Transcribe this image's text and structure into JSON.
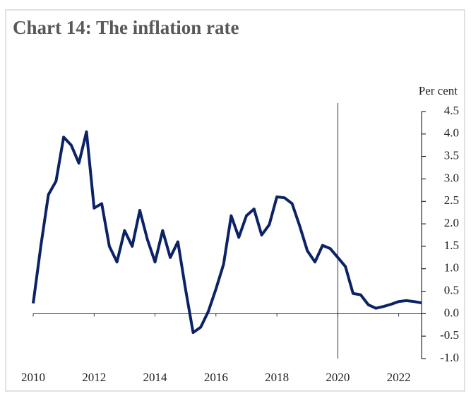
{
  "chart_data": {
    "type": "line",
    "title": "Chart 14:  The inflation rate",
    "y_unit": "Per cent",
    "x": [
      2010,
      2010.25,
      2010.5,
      2010.75,
      2011,
      2011.25,
      2011.5,
      2011.75,
      2012,
      2012.25,
      2012.5,
      2012.75,
      2013,
      2013.25,
      2013.5,
      2013.75,
      2014,
      2014.25,
      2014.5,
      2014.75,
      2015,
      2015.25,
      2015.5,
      2015.75,
      2016,
      2016.25,
      2016.5,
      2016.75,
      2017,
      2017.25,
      2017.5,
      2017.75,
      2018,
      2018.25,
      2018.5,
      2018.75,
      2019,
      2019.25,
      2019.5,
      2019.75,
      2020,
      2020.25,
      2020.5,
      2020.75,
      2021,
      2021.25,
      2021.5,
      2021.75,
      2022,
      2022.25,
      2022.5,
      2022.75
    ],
    "series": [
      {
        "color": "#0b2265",
        "values": [
          0.23,
          1.5,
          2.65,
          2.95,
          3.93,
          3.75,
          3.35,
          4.05,
          2.35,
          2.45,
          1.5,
          1.15,
          1.85,
          1.5,
          2.3,
          1.65,
          1.15,
          1.85,
          1.25,
          1.6,
          0.55,
          -0.42,
          -0.3,
          0.05,
          0.55,
          1.1,
          2.18,
          1.7,
          2.18,
          2.33,
          1.75,
          1.98,
          2.6,
          2.58,
          2.45,
          1.95,
          1.4,
          1.15,
          1.52,
          1.45,
          1.25,
          1.05,
          0.45,
          0.42,
          0.2,
          0.12,
          0.16,
          0.21,
          0.27,
          0.29,
          0.27,
          0.24
        ]
      }
    ],
    "xlim": [
      2010,
      2022.75
    ],
    "xticks": [
      2010,
      2012,
      2014,
      2016,
      2018,
      2020,
      2022
    ],
    "ylim": [
      -1,
      4.5
    ],
    "yticks": [
      {
        "value": -1,
        "label": "-1.0"
      },
      -0.5,
      {
        "value": 0,
        "label": "0.0"
      },
      0.5,
      {
        "value": 1,
        "label": "1.0"
      },
      1.5,
      {
        "value": 2,
        "label": "2.0"
      },
      2.5,
      {
        "value": 3,
        "label": "3.0"
      },
      3.5,
      {
        "value": 4,
        "label": "4.0"
      },
      4.5
    ],
    "vline": 2020
  }
}
